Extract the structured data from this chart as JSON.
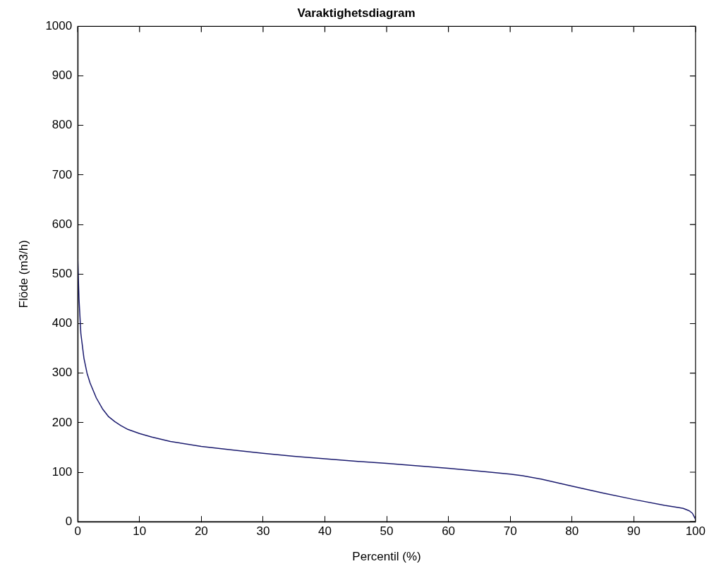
{
  "chart_data": {
    "type": "line",
    "title": "Varaktighetsdiagram",
    "xlabel": "Percentil (%)",
    "ylabel": "Flöde (m3/h)",
    "x": [
      0,
      0.2,
      0.5,
      1,
      1.5,
      2,
      3,
      4,
      5,
      6,
      7,
      8,
      10,
      12,
      15,
      20,
      25,
      30,
      35,
      40,
      45,
      50,
      55,
      60,
      65,
      70,
      72,
      75,
      80,
      85,
      90,
      95,
      97,
      98,
      99,
      99.5,
      100
    ],
    "series": [
      {
        "color": "#1a1a6e",
        "values": [
          530,
          450,
          380,
          330,
          300,
          280,
          250,
          228,
          212,
          202,
          194,
          187,
          178,
          171,
          162,
          152,
          145,
          138,
          132,
          127,
          122,
          118,
          113,
          108,
          102,
          96,
          93,
          86,
          72,
          58,
          45,
          33,
          29,
          27,
          22,
          17,
          5
        ]
      }
    ],
    "xlim": [
      0,
      100
    ],
    "xticks": [
      0,
      10,
      20,
      30,
      40,
      50,
      60,
      70,
      80,
      90,
      100
    ],
    "ylim": [
      0,
      1000
    ],
    "yticks": [
      0,
      100,
      200,
      300,
      400,
      500,
      600,
      700,
      800,
      900,
      1000
    ],
    "grid": false,
    "legend": false,
    "marker": "none",
    "line_style": "solid"
  }
}
